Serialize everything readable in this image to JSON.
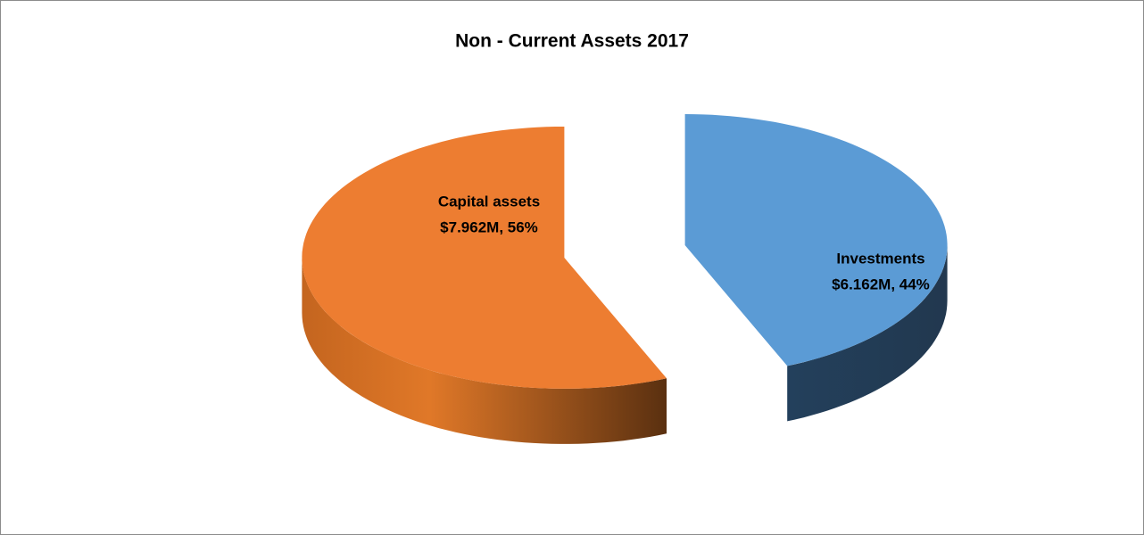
{
  "chart_data": {
    "type": "pie",
    "title": "Non - Current Assets 2017",
    "categories": [
      "Investments",
      "Capital assets"
    ],
    "values": [
      6.162,
      7.962
    ],
    "value_labels": [
      "$6.162M, 44%",
      "$7.962M, 56%"
    ],
    "colors": [
      "#5b9bd5",
      "#ed7d31"
    ]
  }
}
